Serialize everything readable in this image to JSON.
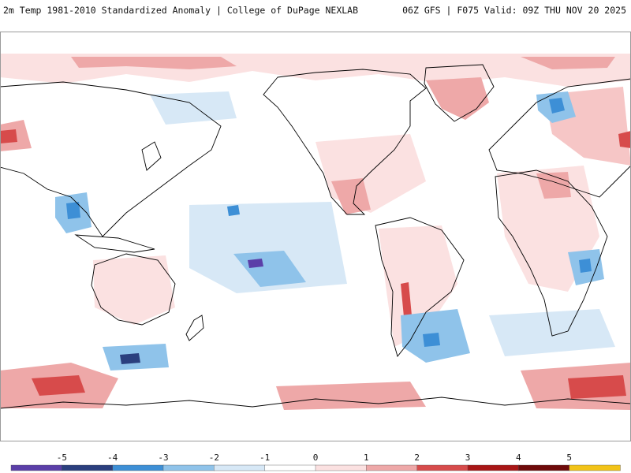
{
  "header": {
    "left_title": "2m Temp 1981-2010 Standardized Anomaly | College of DuPage NEXLAB",
    "right_title": "06Z GFS | F075 Valid: 09Z THU NOV 20 2025"
  },
  "colorbar": {
    "ticks": [
      "-5",
      "-4",
      "-3",
      "-2",
      "-1",
      "0",
      "1",
      "2",
      "3",
      "4",
      "5"
    ],
    "colors": [
      "#5b3fa8",
      "#2b3f7e",
      "#3d8fd6",
      "#8fc3ea",
      "#d7e8f6",
      "#ffffff",
      "#fbe1e1",
      "#eea8a8",
      "#d74b4b",
      "#a81616",
      "#6e0a0a",
      "#f2c318"
    ]
  },
  "palette": {
    "ocean_bg": "#ffffff",
    "frame": "#9a9a9a",
    "coast": "#000000"
  }
}
